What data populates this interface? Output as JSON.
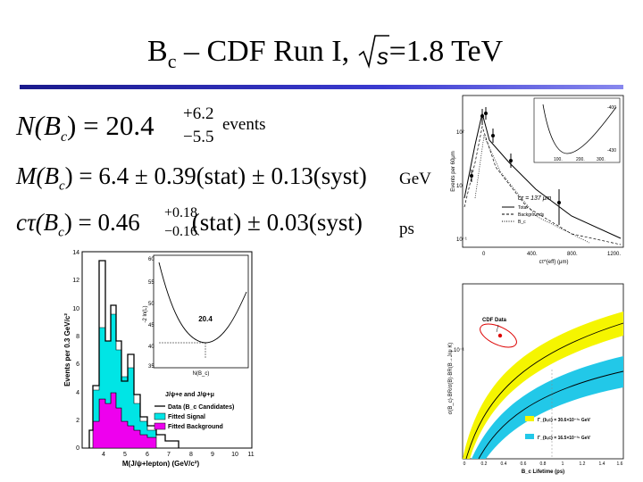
{
  "title": {
    "main": "B",
    "sub": "c",
    "rest": " – CDF Run I, ",
    "sqrt_var": "s",
    "energy": "=1.8 TeV"
  },
  "equations": {
    "n": {
      "lhs": "N(B",
      "lhs_sub": "c",
      "lhs_close": ") = 20.4",
      "plus": "+6.2",
      "minus": "−5.5",
      "unit": "events"
    },
    "m": {
      "text": "M(B",
      "sub": "c",
      "rest": ") = 6.4 ± 0.39(stat) ± 0.13(syst)",
      "unit": "GeV"
    },
    "ct": {
      "text": "cτ(B",
      "sub": "c",
      "close": ") = 0.46",
      "plus": "+0.18",
      "minus": "−0.16",
      "rest": "(stat) ± 0.03(syst)",
      "unit": "ps"
    }
  },
  "mass_plot": {
    "ylabel": "Events per 0.3 GeV/c²",
    "xlabel": "M(J/ψ+lepton) (GeV/c²)",
    "yticks": [
      "0",
      "2",
      "4",
      "6",
      "8",
      "10",
      "12",
      "14"
    ],
    "xticks": [
      "4",
      "5",
      "6",
      "7",
      "8",
      "9",
      "10",
      "11"
    ],
    "legend": [
      "J/ψ+e and J/ψ+μ",
      "Data (B_c Candidates)",
      "Fitted Signal",
      "Fitted Background"
    ],
    "colors": {
      "signal": "#00e5e5",
      "background": "#ee00ee"
    },
    "inset": {
      "ylabel": "-2 ln(L)",
      "xlabel": "N(B_c)",
      "yticks": [
        "35",
        "40",
        "45",
        "50",
        "55",
        "60"
      ],
      "xticks": [
        "0",
        "20",
        "40",
        "60"
      ],
      "min_label": "20.4"
    }
  },
  "lifetime_plot": {
    "ylabel": "Events per 60μm",
    "xlabel": "cτ^{eff} (μm)",
    "yticks": [
      "10²",
      "10",
      "1",
      "10⁻¹"
    ],
    "xticks": [
      "0",
      "400.",
      "800.",
      "1200."
    ],
    "fit_label": "cτ = 137 μm",
    "legend": [
      "Total",
      "Backgrounds",
      "B_c"
    ],
    "inset": {
      "yticks": [
        "-430",
        "-420",
        "-410",
        "-400"
      ],
      "xticks": [
        "100.",
        "200.",
        "300."
      ],
      "xlabel": "cτ (μm)"
    }
  },
  "theory_plot": {
    "ylabel": "σ(B_c)·BR/σ(B)·BR(B→J/ψ K)",
    "xlabel": "B_c Lifetime (ps)",
    "data_label": "CDF Data",
    "xticks": [
      "0",
      "0.2",
      "0.4",
      "0.6",
      "0.8",
      "1",
      "1.2",
      "1.4",
      "1.6"
    ],
    "ytick": "10⁻¹",
    "legend": [
      "Γ_{b,c} = 30.6×10⁻¹⁵ GeV",
      "Γ_{b,c} = 16.5×10⁻¹⁵ GeV"
    ],
    "colors": {
      "band1": "#f5f500",
      "band2": "#22c8e8"
    }
  }
}
